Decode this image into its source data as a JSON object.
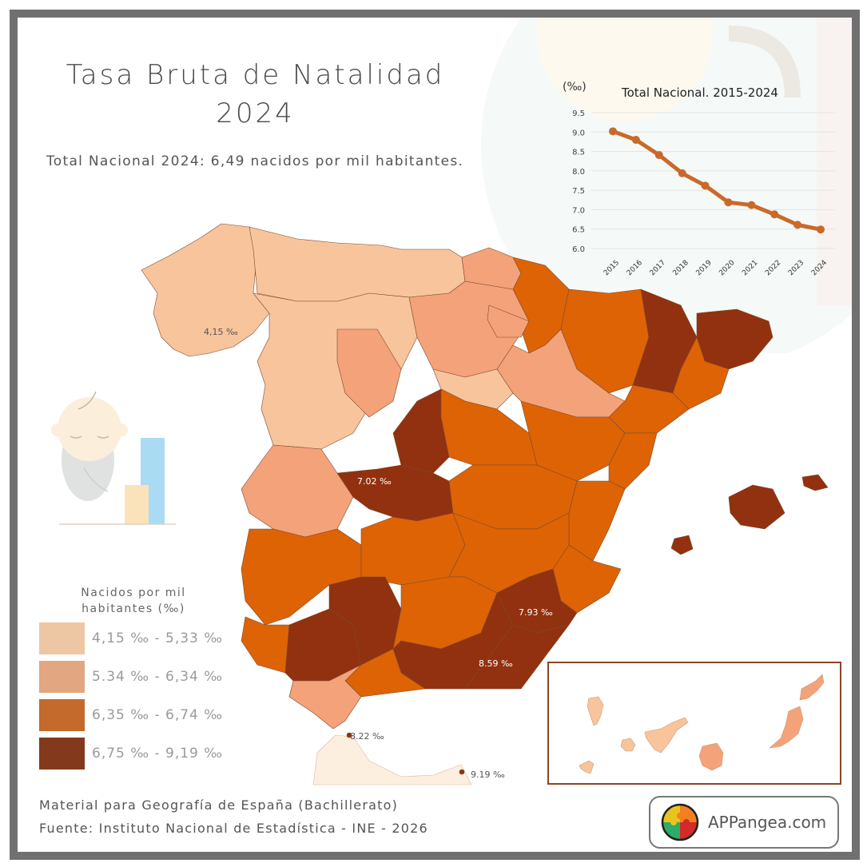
{
  "title": {
    "line1": "Tasa Bruta de Natalidad",
    "line2": "2024"
  },
  "subtitle": "Total Nacional 2024: 6,49 nacidos por mil habitantes.",
  "colors": {
    "frame": "#707070",
    "class1": "#f8c49c",
    "class2": "#f4a27a",
    "class3": "#de6305",
    "class4": "#92310f",
    "legend_class1": "#edc6a3",
    "legend_class2": "#e2a680",
    "legend_class3": "#c46a2c",
    "legend_class4": "#833a1c",
    "line": "#c96a2a",
    "africa": "#fcefdf"
  },
  "legend": {
    "title_line1": "Nacidos por mil",
    "title_line2": "habitantes (‰)",
    "items": [
      {
        "label": "4,15 ‰ - 5,33 ‰"
      },
      {
        "label": "5.34 ‰ - 6,34 ‰"
      },
      {
        "label": "6,35 ‰ - 6,74 ‰"
      },
      {
        "label": "6,75 ‰ - 9,19 ‰"
      }
    ]
  },
  "map_labels": {
    "ourense": "4,15 ‰",
    "toledo": "7.02 ‰",
    "murcia": "7.93 ‰",
    "almeria": "8.59 ‰",
    "ceuta": "8.22 ‰",
    "melilla": "9.19 ‰"
  },
  "chart_data": {
    "type": "line",
    "title": "Total Nacional. 2015-2024",
    "ylabel": "(‰)",
    "xlabel": "",
    "categories": [
      "2015",
      "2016",
      "2017",
      "2018",
      "2019",
      "2020",
      "2021",
      "2022",
      "2023",
      "2024"
    ],
    "values": [
      9.02,
      8.8,
      8.41,
      7.94,
      7.62,
      7.19,
      7.12,
      6.88,
      6.61,
      6.49
    ],
    "yticks": [
      "9.5",
      "9.0",
      "8.5",
      "8.0",
      "7.5",
      "7.0",
      "6.5",
      "6.0"
    ],
    "ylim": [
      6.0,
      9.5
    ],
    "grid": true
  },
  "footer": {
    "line1": "Material para Geografía de España (Bachillerato)",
    "line2": "Fuente: Instituto Nacional de Estadística - INE - 2026"
  },
  "logo": {
    "text": "APPangea.com"
  }
}
